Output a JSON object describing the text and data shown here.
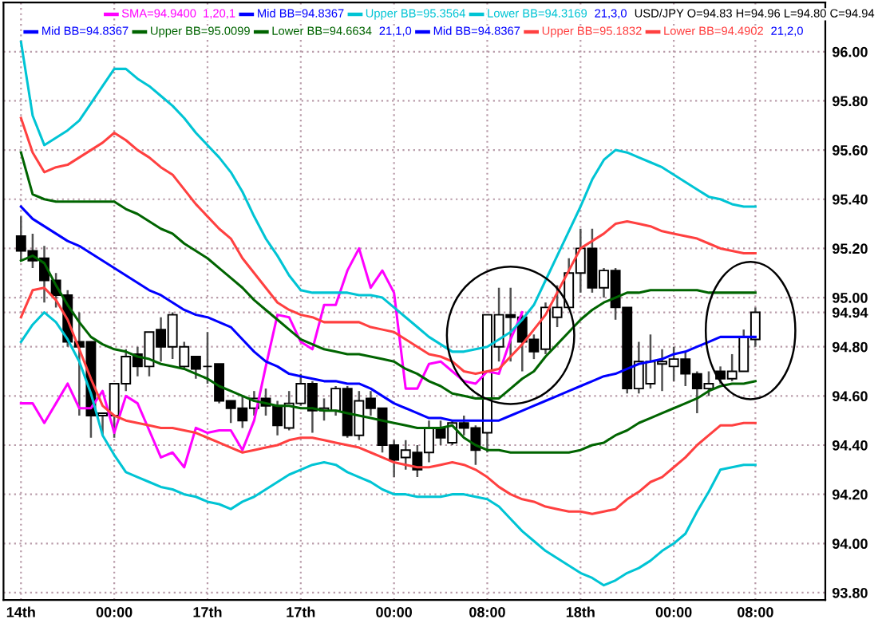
{
  "chart_data": {
    "type": "candlestick",
    "color": "#000000",
    "categories": [
      "14th",
      null,
      null,
      null,
      null,
      null,
      null,
      null,
      "00:00",
      null,
      null,
      null,
      null,
      null,
      null,
      null,
      "17th",
      null,
      null,
      null,
      null,
      null,
      null,
      null,
      "17th",
      null,
      null,
      null,
      null,
      null,
      null,
      null,
      "00:00",
      null,
      null,
      null,
      null,
      null,
      null,
      null,
      "08:00",
      null,
      null,
      null,
      null,
      null,
      null,
      null,
      "18th",
      null,
      null,
      null,
      null,
      null,
      null,
      null,
      "00:00",
      null,
      null,
      null,
      null,
      null,
      null,
      "08:00"
    ],
    "ohlc": [
      [
        95.25,
        95.33,
        95.15,
        95.19
      ],
      [
        95.19,
        95.26,
        95.12,
        95.15
      ],
      [
        95.16,
        95.21,
        94.98,
        95.07
      ],
      [
        95.07,
        95.1,
        94.96,
        95.01
      ],
      [
        95.01,
        95.03,
        94.8,
        94.82
      ],
      [
        94.82,
        94.94,
        94.52,
        94.8
      ],
      [
        94.82,
        94.82,
        94.43,
        94.52
      ],
      [
        94.52,
        94.53,
        94.44,
        94.53
      ],
      [
        94.52,
        94.65,
        94.43,
        94.65
      ],
      [
        94.65,
        94.79,
        94.62,
        94.76
      ],
      [
        94.77,
        94.8,
        94.68,
        94.72
      ],
      [
        94.72,
        94.86,
        94.68,
        94.86
      ],
      [
        94.87,
        94.92,
        94.74,
        94.8
      ],
      [
        94.8,
        94.94,
        94.75,
        94.93
      ],
      [
        94.72,
        94.82,
        94.71,
        94.8
      ],
      [
        94.76,
        94.76,
        94.67,
        94.71
      ],
      [
        94.72,
        94.86,
        94.65,
        94.72
      ],
      [
        94.73,
        94.73,
        94.57,
        94.58
      ],
      [
        94.58,
        94.58,
        94.49,
        94.55
      ],
      [
        94.55,
        94.6,
        94.47,
        94.5
      ],
      [
        94.55,
        94.62,
        94.52,
        94.59
      ],
      [
        94.59,
        94.63,
        94.52,
        94.56
      ],
      [
        94.56,
        94.58,
        94.44,
        94.48
      ],
      [
        94.47,
        94.62,
        94.46,
        94.57
      ],
      [
        94.57,
        94.69,
        94.56,
        94.65
      ],
      [
        94.65,
        94.66,
        94.45,
        94.54
      ],
      [
        94.54,
        94.59,
        94.5,
        94.55
      ],
      [
        94.54,
        94.64,
        94.52,
        94.63
      ],
      [
        94.63,
        94.64,
        94.43,
        94.44
      ],
      [
        94.44,
        94.62,
        94.42,
        94.58
      ],
      [
        94.59,
        94.62,
        94.52,
        94.55
      ],
      [
        94.55,
        94.55,
        94.37,
        94.4
      ],
      [
        94.4,
        94.42,
        94.27,
        94.34
      ],
      [
        94.35,
        94.42,
        94.3,
        94.38
      ],
      [
        94.37,
        94.4,
        94.27,
        94.3
      ],
      [
        94.37,
        94.5,
        94.33,
        94.47
      ],
      [
        94.47,
        94.5,
        94.4,
        94.43
      ],
      [
        94.41,
        94.5,
        94.4,
        94.49
      ],
      [
        94.49,
        94.52,
        94.44,
        94.47
      ],
      [
        94.47,
        94.48,
        94.32,
        94.38
      ],
      [
        94.45,
        94.93,
        94.37,
        94.93
      ],
      [
        94.8,
        95.04,
        94.74,
        94.93
      ],
      [
        94.93,
        95.04,
        94.74,
        94.92
      ],
      [
        94.92,
        94.93,
        94.7,
        94.82
      ],
      [
        94.83,
        94.85,
        94.75,
        94.78
      ],
      [
        94.79,
        94.98,
        94.77,
        94.96
      ],
      [
        94.92,
        95.05,
        94.88,
        94.96
      ],
      [
        94.96,
        95.16,
        94.95,
        95.1
      ],
      [
        95.1,
        95.28,
        95.02,
        95.2
      ],
      [
        95.2,
        95.28,
        95.02,
        95.04
      ],
      [
        95.04,
        95.12,
        95.0,
        95.11
      ],
      [
        95.11,
        95.12,
        94.91,
        94.96
      ],
      [
        94.96,
        94.96,
        94.61,
        94.63
      ],
      [
        94.63,
        94.82,
        94.61,
        94.74
      ],
      [
        94.65,
        94.85,
        94.63,
        94.74
      ],
      [
        94.73,
        94.79,
        94.62,
        94.74
      ],
      [
        94.72,
        94.8,
        94.66,
        94.75
      ],
      [
        94.75,
        94.78,
        94.64,
        94.69
      ],
      [
        94.69,
        94.7,
        94.53,
        94.63
      ],
      [
        94.63,
        94.7,
        94.6,
        94.65
      ],
      [
        94.7,
        94.72,
        94.65,
        94.67
      ],
      [
        94.67,
        94.77,
        94.66,
        94.7
      ],
      [
        94.7,
        94.87,
        94.7,
        94.84
      ],
      [
        94.83,
        94.96,
        94.8,
        94.94
      ]
    ],
    "series": [
      {
        "type": "line",
        "name": "SMA=94.9400  1,20,1",
        "color": "#ff00ff",
        "values": [
          94.57,
          94.57,
          94.49,
          94.57,
          94.65,
          94.55,
          94.55,
          94.62,
          94.45,
          94.6,
          94.57,
          94.46,
          94.35,
          94.37,
          94.31,
          94.47,
          94.45,
          94.46,
          94.46,
          94.38,
          94.5,
          94.72,
          94.93,
          94.92,
          94.82,
          94.79,
          94.97,
          94.97,
          95.11,
          95.2,
          95.04,
          95.11,
          95.02,
          94.63,
          94.63,
          94.73,
          94.74,
          94.7,
          94.66,
          94.65,
          94.7,
          94.69,
          94.83,
          94.94,
          null,
          null,
          null,
          null,
          null,
          null,
          null,
          null,
          null,
          null,
          null,
          null,
          null,
          null,
          null,
          null,
          null,
          null,
          null,
          null
        ]
      },
      {
        "type": "line",
        "name": "Mid BB=94.8367",
        "color": "#0000ff",
        "values": [
          95.37,
          95.32,
          95.29,
          95.26,
          95.23,
          95.21,
          95.18,
          95.15,
          95.12,
          95.09,
          95.06,
          95.03,
          95.01,
          94.98,
          94.95,
          94.93,
          94.92,
          94.9,
          94.88,
          94.83,
          94.78,
          94.74,
          94.72,
          94.69,
          94.68,
          94.67,
          94.66,
          94.66,
          94.65,
          94.65,
          94.63,
          94.6,
          94.57,
          94.55,
          94.53,
          94.51,
          94.51,
          94.5,
          94.5,
          94.5,
          94.5,
          94.5,
          94.52,
          94.54,
          94.56,
          94.58,
          94.6,
          94.62,
          94.64,
          94.66,
          94.68,
          94.69,
          94.71,
          94.73,
          94.74,
          94.75,
          94.77,
          94.78,
          94.8,
          94.82,
          94.84,
          94.84,
          94.84,
          94.84
        ]
      },
      {
        "type": "line",
        "name": "Upper BB=95.3564",
        "color": "#00c4d4",
        "values": [
          96.04,
          95.74,
          95.62,
          95.65,
          95.68,
          95.72,
          95.79,
          95.86,
          95.93,
          95.93,
          95.89,
          95.86,
          95.82,
          95.78,
          95.73,
          95.67,
          95.62,
          95.57,
          95.51,
          95.43,
          95.33,
          95.24,
          95.17,
          95.09,
          95.03,
          95.02,
          95.02,
          95.02,
          95.02,
          95.01,
          95.01,
          95.0,
          94.96,
          94.92,
          94.88,
          94.84,
          94.81,
          94.78,
          94.78,
          94.79,
          94.8,
          94.83,
          94.86,
          94.91,
          94.97,
          95.07,
          95.17,
          95.27,
          95.37,
          95.48,
          95.56,
          95.6,
          95.59,
          95.57,
          95.55,
          95.53,
          95.5,
          95.47,
          95.44,
          95.41,
          95.4,
          95.38,
          95.37,
          95.37
        ]
      },
      {
        "type": "line",
        "name": "Lower BB=94.3169",
        "color": "#00c4d4",
        "values": [
          94.82,
          94.89,
          94.94,
          94.9,
          94.83,
          94.74,
          94.61,
          94.44,
          94.36,
          94.29,
          94.27,
          94.25,
          94.23,
          94.22,
          94.2,
          94.19,
          94.17,
          94.16,
          94.14,
          94.17,
          94.19,
          94.22,
          94.25,
          94.28,
          94.3,
          94.32,
          94.33,
          94.32,
          94.29,
          94.27,
          94.25,
          94.22,
          94.2,
          94.2,
          94.19,
          94.19,
          94.19,
          94.2,
          94.2,
          94.19,
          94.18,
          94.15,
          94.1,
          94.05,
          94.01,
          93.97,
          93.94,
          93.91,
          93.88,
          93.86,
          93.83,
          93.85,
          93.88,
          93.9,
          93.93,
          93.97,
          94.0,
          94.04,
          94.13,
          94.21,
          94.3,
          94.31,
          94.32,
          94.32
        ]
      },
      {
        "type": "line",
        "name": "Upper BB=95.0099",
        "color": "#006400",
        "values": [
          95.59,
          95.42,
          95.4,
          95.39,
          95.39,
          95.39,
          95.39,
          95.39,
          95.39,
          95.36,
          95.34,
          95.31,
          95.28,
          95.26,
          95.22,
          95.19,
          95.16,
          95.12,
          95.08,
          95.04,
          94.99,
          94.95,
          94.91,
          94.87,
          94.83,
          94.81,
          94.79,
          94.78,
          94.77,
          94.77,
          94.76,
          94.75,
          94.74,
          94.71,
          94.69,
          94.66,
          94.64,
          94.61,
          94.6,
          94.59,
          94.59,
          94.59,
          94.63,
          94.67,
          94.7,
          94.76,
          94.81,
          94.86,
          94.91,
          94.95,
          94.98,
          95.0,
          95.02,
          95.02,
          95.03,
          95.03,
          95.03,
          95.03,
          95.03,
          95.02,
          95.02,
          95.02,
          95.02,
          95.02
        ]
      },
      {
        "type": "line",
        "name": "Lower BB=94.6634",
        "color": "#006400",
        "values": [
          95.15,
          95.17,
          95.14,
          95.05,
          94.97,
          94.9,
          94.84,
          94.81,
          94.79,
          94.78,
          94.76,
          94.75,
          94.73,
          94.72,
          94.71,
          94.69,
          94.67,
          94.64,
          94.62,
          94.6,
          94.58,
          94.57,
          94.56,
          94.56,
          94.55,
          94.55,
          94.54,
          94.54,
          94.53,
          94.52,
          94.51,
          94.5,
          94.49,
          94.48,
          94.47,
          94.47,
          94.47,
          94.48,
          94.43,
          94.4,
          94.38,
          94.38,
          94.37,
          94.37,
          94.37,
          94.37,
          94.37,
          94.37,
          94.38,
          94.4,
          94.41,
          94.44,
          94.46,
          94.49,
          94.51,
          94.53,
          94.55,
          94.57,
          94.59,
          94.62,
          94.64,
          94.65,
          94.65,
          94.66
        ]
      },
      {
        "type": "line",
        "name": "Upper BB=95.1832",
        "color": "#ff4040",
        "values": [
          95.73,
          95.59,
          95.51,
          95.53,
          95.54,
          95.57,
          95.6,
          95.63,
          95.67,
          95.64,
          95.6,
          95.57,
          95.53,
          95.5,
          95.44,
          95.38,
          95.33,
          95.28,
          95.24,
          95.16,
          95.1,
          95.04,
          94.98,
          94.95,
          94.93,
          94.92,
          94.9,
          94.9,
          94.9,
          94.9,
          94.88,
          94.87,
          94.86,
          94.83,
          94.8,
          94.77,
          94.76,
          94.74,
          94.7,
          94.69,
          94.7,
          94.71,
          94.76,
          94.81,
          94.87,
          94.93,
          95.02,
          95.11,
          95.2,
          95.23,
          95.26,
          95.3,
          95.31,
          95.3,
          95.29,
          95.27,
          95.26,
          95.25,
          95.24,
          95.22,
          95.2,
          95.19,
          95.18,
          95.18
        ]
      },
      {
        "type": "line",
        "name": "Lower BB=94.4902",
        "color": "#ff4040",
        "values": [
          94.92,
          95.03,
          95.04,
          94.99,
          94.91,
          94.79,
          94.67,
          94.56,
          94.52,
          94.5,
          94.49,
          94.48,
          94.47,
          94.47,
          94.46,
          94.45,
          94.43,
          94.41,
          94.39,
          94.37,
          94.38,
          94.39,
          94.4,
          94.42,
          94.43,
          94.43,
          94.42,
          94.41,
          94.4,
          94.39,
          94.37,
          94.35,
          94.33,
          94.32,
          94.31,
          94.31,
          94.32,
          94.33,
          94.32,
          94.3,
          94.27,
          94.23,
          94.2,
          94.18,
          94.17,
          94.15,
          94.14,
          94.13,
          94.13,
          94.12,
          94.13,
          94.14,
          94.18,
          94.21,
          94.25,
          94.27,
          94.31,
          94.35,
          94.4,
          94.44,
          94.48,
          94.48,
          94.49,
          94.49
        ]
      }
    ],
    "ylim": [
      93.77,
      96.2
    ],
    "yticks": [
      {
        "value": 93.8,
        "label": "93.80"
      },
      {
        "value": 94.0,
        "label": "94.00"
      },
      {
        "value": 94.2,
        "label": "94.20"
      },
      {
        "value": 94.4,
        "label": "94.40"
      },
      {
        "value": 94.6,
        "label": "94.60"
      },
      {
        "value": 94.8,
        "label": "94.80"
      },
      {
        "value": 94.94,
        "label": "94.94"
      },
      {
        "value": 95.0,
        "label": "95.00"
      },
      {
        "value": 95.2,
        "label": "95.20"
      },
      {
        "value": 95.4,
        "label": "95.40"
      },
      {
        "value": 95.6,
        "label": "95.60"
      },
      {
        "value": 95.8,
        "label": "95.80"
      },
      {
        "value": 96.0,
        "label": "96.00"
      }
    ],
    "grid": true,
    "legend": "top right",
    "annotations": [
      "21,3,0",
      "21,1,0",
      "21,2,0",
      "USD/JPY O=94.83 H=94.96 L=94.80 C=94.94"
    ]
  }
}
